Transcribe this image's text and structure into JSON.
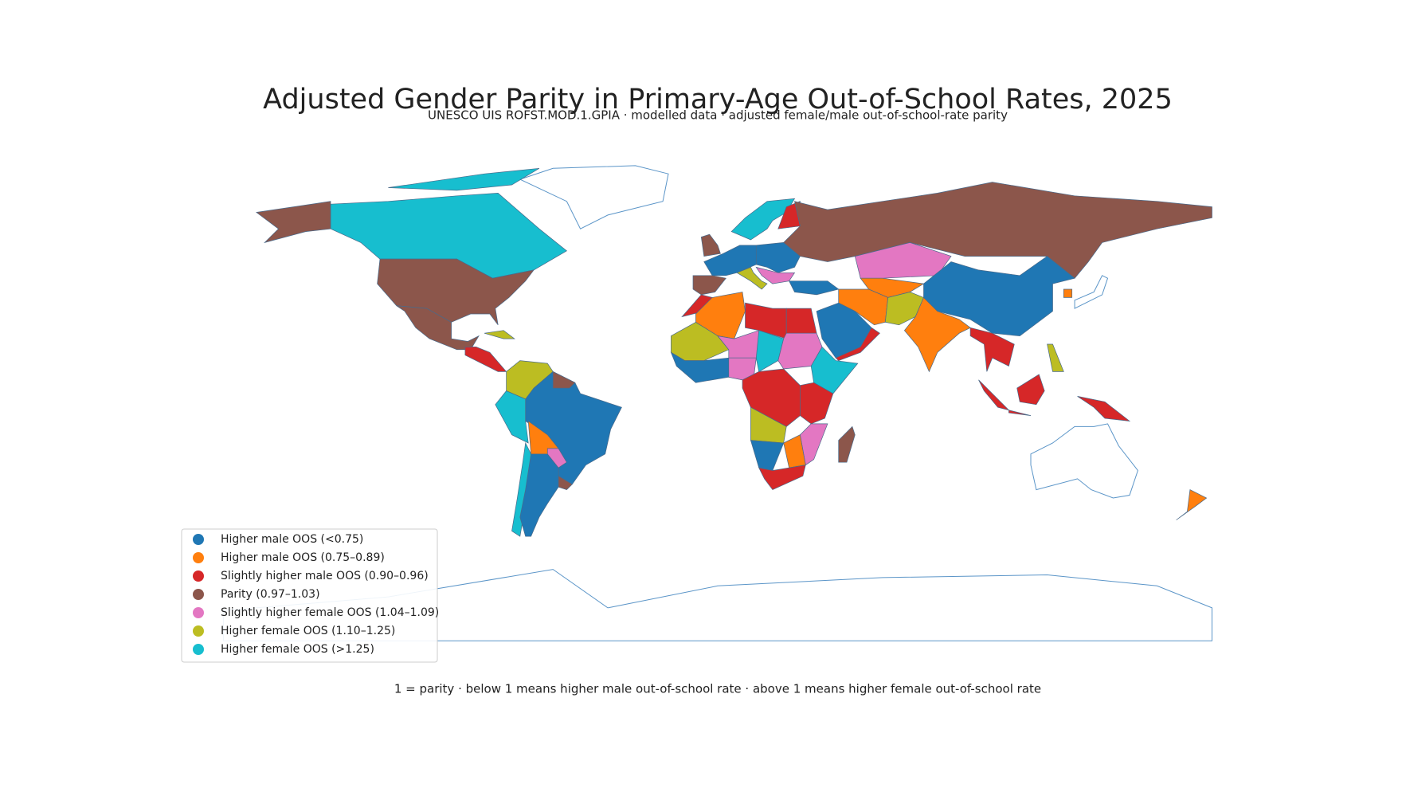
{
  "map": {
    "title": "Adjusted Gender Parity in Primary-Age Out-of-School Rates, 2025",
    "subtitle": "UNESCO UIS ROFST.MOD.1.GPIA · modelled data · adjusted female/male out-of-school-rate parity",
    "legend": {
      "items": [
        {
          "label": "Higher male OOS (<0.75)",
          "color": "#1f77b4"
        },
        {
          "label": "Higher male OOS (0.75–0.89)",
          "color": "#ff7f0e"
        },
        {
          "label": "Slightly higher male OOS (0.90–0.96)",
          "color": "#d62728"
        },
        {
          "label": "Parity (0.97–1.03)",
          "color": "#8c564b"
        },
        {
          "label": "Slightly higher female OOS (1.04–1.09)",
          "color": "#e377c2"
        },
        {
          "label": "Higher female OOS (1.10–1.25)",
          "color": "#bcbd22"
        },
        {
          "label": "Higher female OOS (>1.25)",
          "color": "#17becf"
        }
      ]
    },
    "note": "1 = parity · below 1 means higher male out-of-school rate · above 1 means higher female out-of-school rate"
  }
}
